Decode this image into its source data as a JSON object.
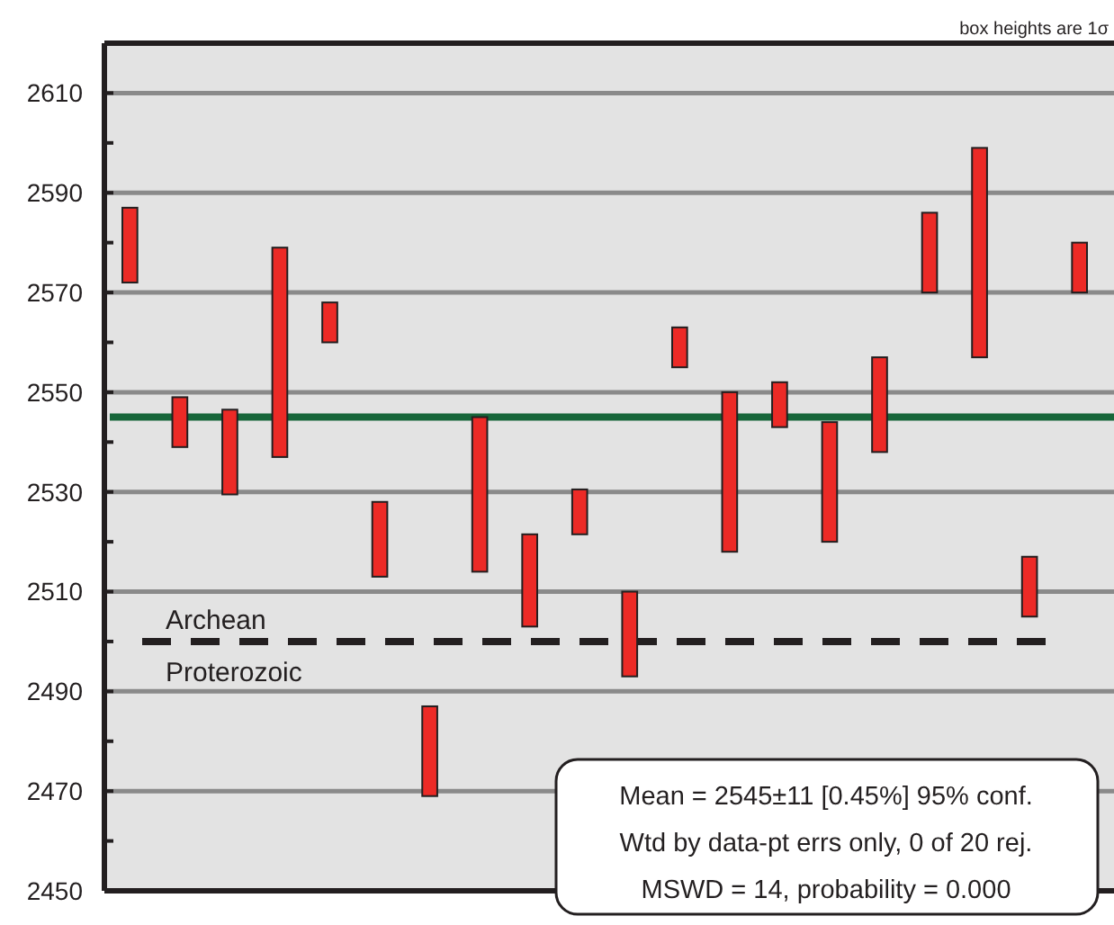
{
  "chart_data": {
    "type": "bar",
    "categories": [
      null,
      null,
      null,
      null,
      null,
      null,
      null,
      null,
      null,
      null,
      null,
      null,
      null,
      null,
      null,
      null,
      null,
      null,
      null,
      null
    ],
    "base": [
      2572,
      2539,
      2529.5,
      2537,
      2560,
      2513,
      2469,
      2514,
      2503,
      2521.5,
      2493,
      2555,
      2518,
      2543,
      2520,
      2538,
      2570,
      2557,
      2505,
      2570
    ],
    "values": [
      15,
      10,
      17,
      42,
      8,
      15,
      18,
      31,
      18.5,
      9,
      17,
      8,
      32,
      9,
      24,
      19,
      16,
      42,
      12,
      10
    ],
    "color": "#ec2a26",
    "ylim": [
      2450,
      2620
    ],
    "yticks": [
      2450,
      {
        "value": 2460,
        "label": null
      },
      2470,
      {
        "value": 2480,
        "label": null
      },
      2490,
      {
        "value": 2500,
        "label": null
      },
      2510,
      {
        "value": 2520,
        "label": null
      },
      2530,
      {
        "value": 2540,
        "label": null
      },
      2550,
      {
        "value": 2560,
        "label": null
      },
      2570,
      {
        "value": 2580,
        "label": null
      },
      2590,
      {
        "value": 2600,
        "label": null
      },
      2610
    ],
    "grid": "y",
    "tick_labels": "y",
    "ref_lines": [
      {
        "axis": "y",
        "value": 2545,
        "color": "#17663a",
        "line_style": "solid"
      },
      {
        "axis": "y",
        "value": 2500,
        "label": "Archean",
        "color": "#231f20",
        "line_style": "dashed"
      }
    ],
    "annotations": [
      "box heights are 1σ",
      "Mean = 2545±11  [0.45%]  95% conf.",
      "Wtd by data-pt errs only, 0 of 20 rej.",
      "MSWD = 14, probability = 0.000",
      "Proterozoic"
    ]
  }
}
